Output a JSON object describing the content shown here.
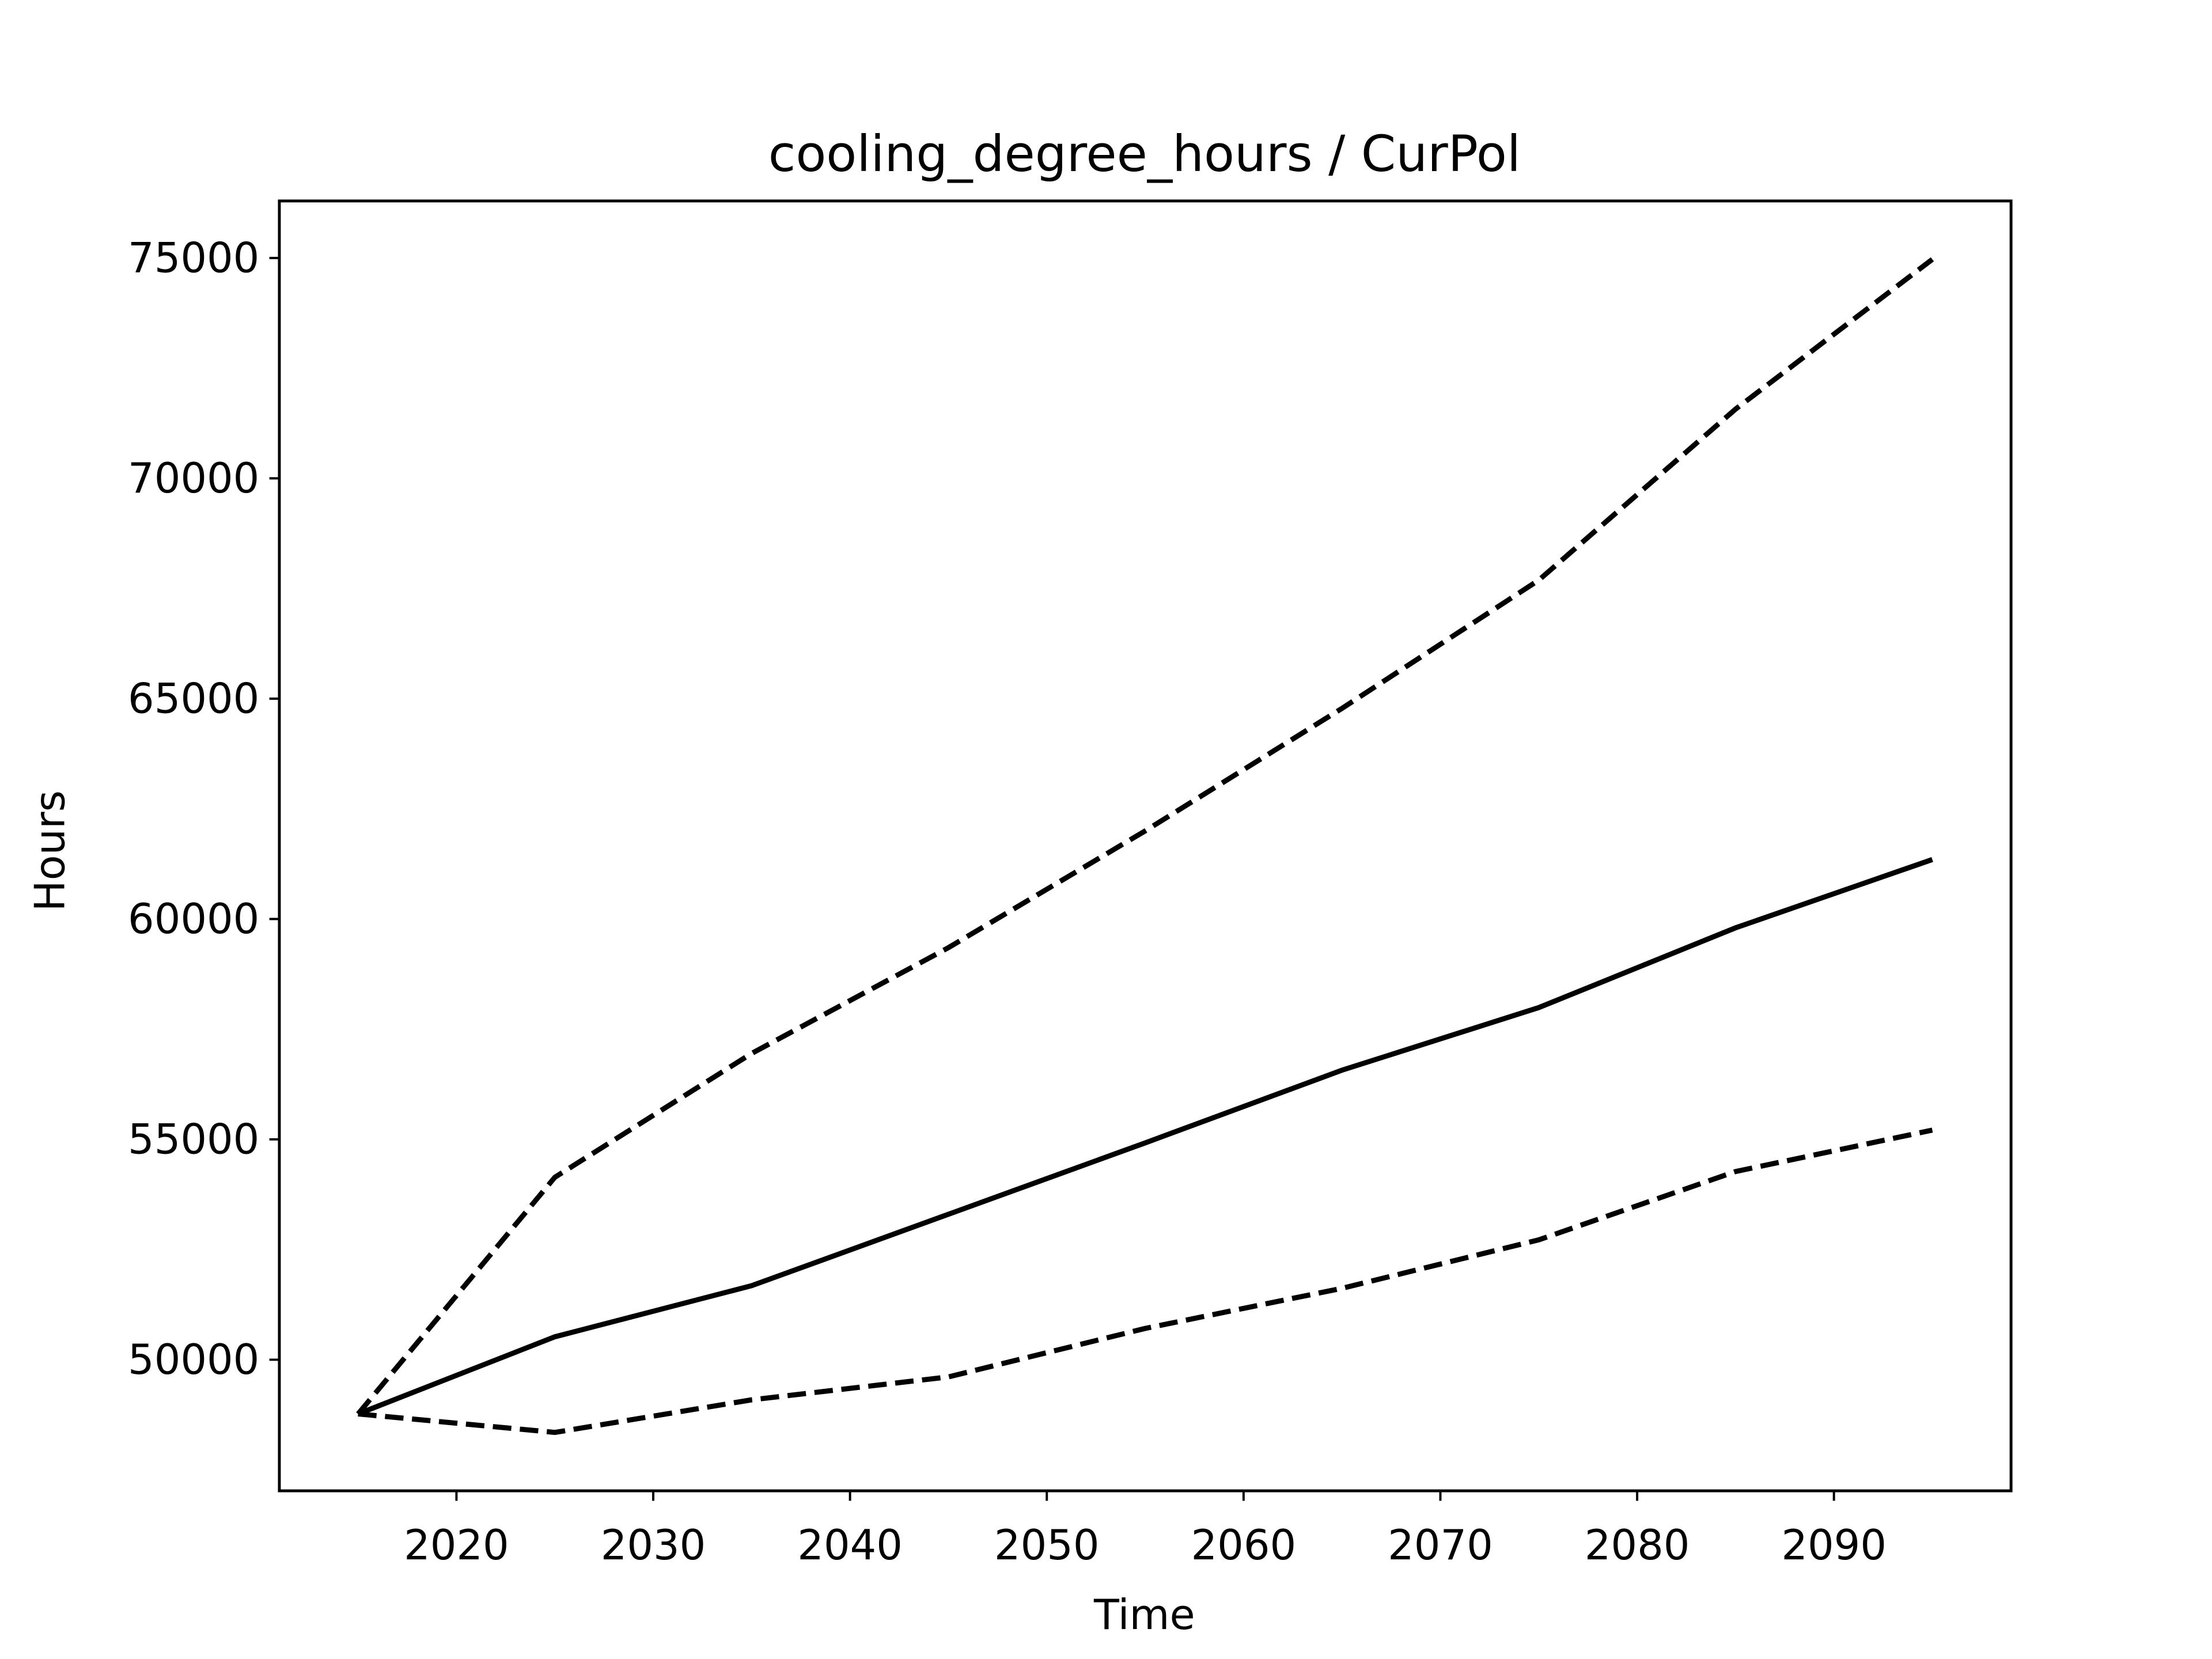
{
  "chart_data": {
    "type": "line",
    "title": "cooling_degree_hours / CurPol",
    "xlabel": "Time",
    "ylabel": "Hours",
    "x": [
      2015,
      2025,
      2035,
      2045,
      2055,
      2065,
      2075,
      2085,
      2095
    ],
    "series": [
      {
        "color": "#000000",
        "linestyle": "dashed",
        "values": [
          48770,
          54140,
          56950,
          59350,
          62000,
          64780,
          67690,
          71570,
          74970
        ]
      },
      {
        "color": "#000000",
        "linestyle": "solid",
        "values": [
          48770,
          50520,
          51680,
          53300,
          54920,
          56570,
          57990,
          59800,
          61350
        ]
      },
      {
        "color": "#000000",
        "linestyle": "dashed",
        "values": [
          48770,
          48350,
          49090,
          49610,
          50710,
          51620,
          52720,
          54270,
          55210
        ]
      }
    ],
    "xlim": [
      2011,
      2099
    ],
    "xticks": [
      2020,
      2030,
      2040,
      2050,
      2060,
      2070,
      2080,
      2090
    ],
    "ylim": [
      47025,
      76294
    ],
    "yticks": [
      50000,
      55000,
      60000,
      65000,
      70000,
      75000
    ],
    "grid": false
  }
}
